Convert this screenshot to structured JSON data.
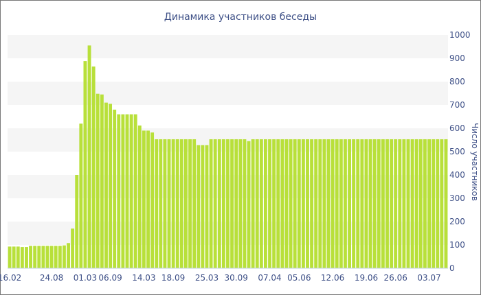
{
  "chart_data": {
    "type": "bar",
    "title": "Динамика участников беседы",
    "xlabel": "",
    "ylabel": "Число участников",
    "ylim": [
      0,
      1000
    ],
    "yticks": [
      0,
      100,
      200,
      300,
      400,
      500,
      600,
      700,
      800,
      900,
      1000
    ],
    "y_axis_position": "right",
    "grid": "alternating horizontal bands",
    "legend": "none",
    "bar_color": "#b8e03a",
    "band_color": "#f5f5f5",
    "text_color": "#3d4f86",
    "x_tick_labels": [
      "16.02",
      "24.08",
      "01.03",
      "06.09",
      "14.03",
      "18.09",
      "25.03",
      "30.09",
      "07.04",
      "05.06",
      "12.06",
      "19.06",
      "26.06",
      "03.07"
    ],
    "x_tick_positions": [
      0,
      10,
      18,
      24,
      32,
      39,
      47,
      54,
      62,
      69,
      77,
      85,
      92,
      100
    ],
    "values": [
      93,
      93,
      93,
      91,
      91,
      96,
      96,
      96,
      96,
      96,
      96,
      96,
      96,
      98,
      108,
      170,
      400,
      620,
      888,
      955,
      865,
      748,
      745,
      710,
      705,
      680,
      660,
      660,
      660,
      660,
      660,
      612,
      590,
      590,
      582,
      553,
      553,
      553,
      553,
      553,
      553,
      553,
      553,
      553,
      553,
      528,
      528,
      528,
      553,
      553,
      553,
      553,
      553,
      553,
      553,
      553,
      553,
      545,
      553,
      553,
      553,
      553,
      553,
      553,
      553,
      553,
      553,
      553,
      553,
      553,
      553,
      553,
      553,
      553,
      553,
      553,
      553,
      553,
      553,
      553,
      553,
      553,
      553,
      553,
      553,
      553,
      553,
      553,
      553,
      553,
      553,
      553,
      553,
      553,
      553,
      553,
      553,
      553,
      553,
      553,
      553,
      553,
      553,
      553,
      553
    ]
  }
}
